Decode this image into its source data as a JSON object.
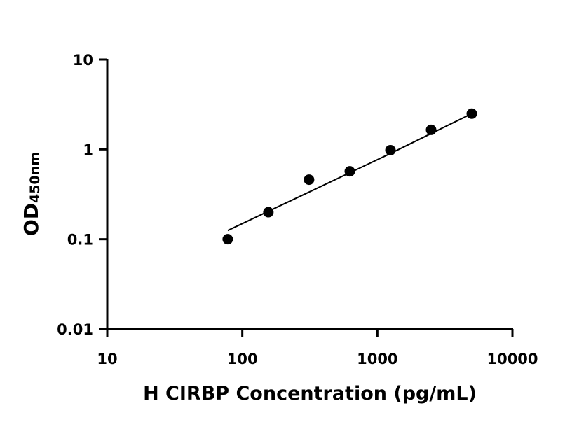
{
  "chart_data": {
    "type": "scatter",
    "title": "",
    "xlabel": "H CIRBP Concentration (pg/mL)",
    "ylabel": {
      "main": "OD",
      "subscript": "450nm"
    },
    "xscale": "log",
    "yscale": "log",
    "xlim": [
      10,
      10000
    ],
    "ylim": [
      0.01,
      10
    ],
    "x_ticks": [
      10,
      100,
      1000,
      10000
    ],
    "x_tick_labels": [
      "10",
      "100",
      "1000",
      "10000"
    ],
    "y_ticks": [
      0.01,
      0.1,
      1,
      10
    ],
    "y_tick_labels": [
      "0.01",
      "0.1",
      "1",
      "10"
    ],
    "grid": false,
    "series": [
      {
        "points": [
          {
            "x": 78,
            "y": 0.1
          },
          {
            "x": 156,
            "y": 0.2
          },
          {
            "x": 312,
            "y": 0.46
          },
          {
            "x": 625,
            "y": 0.57
          },
          {
            "x": 1250,
            "y": 0.98
          },
          {
            "x": 2500,
            "y": 1.65
          },
          {
            "x": 5000,
            "y": 2.5
          }
        ],
        "marker_color": "#000000"
      }
    ],
    "fit_curve": {
      "points": [
        {
          "x": 78,
          "y": 0.125
        },
        {
          "x": 156,
          "y": 0.205
        },
        {
          "x": 312,
          "y": 0.335
        },
        {
          "x": 625,
          "y": 0.55
        },
        {
          "x": 1250,
          "y": 0.9
        },
        {
          "x": 2500,
          "y": 1.5
        },
        {
          "x": 5000,
          "y": 2.5
        }
      ],
      "color": "#000000"
    }
  }
}
